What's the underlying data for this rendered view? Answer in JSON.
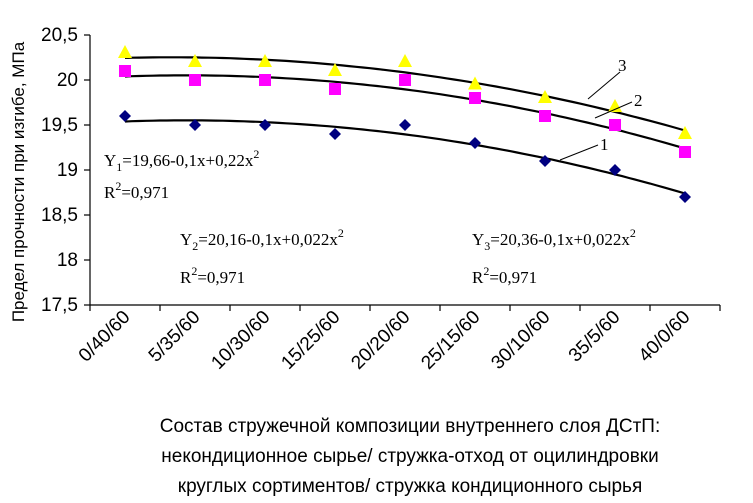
{
  "chart_data": {
    "type": "scatter",
    "categories": [
      "0/40/60",
      "5/35/60",
      "10/30/60",
      "15/25/60",
      "20/20/60",
      "25/15/60",
      "30/10/60",
      "35/5/60",
      "40/0/60"
    ],
    "ylabel": "Предел прочности при изгибе, МПа",
    "xlabel_lines": [
      "Состав стружечной композиции внутреннего слоя ДСтП:",
      "некондиционное сырье/ стружка-отход от оцилиндровки",
      "круглых сортиментов/ стружка кондиционного сырья"
    ],
    "y_ticks": [
      "17,5",
      "18",
      "18,5",
      "19",
      "19,5",
      "20",
      "20,5"
    ],
    "ylim": [
      17.5,
      20.5
    ],
    "series": [
      {
        "marker": "diamond",
        "color": "#000080",
        "values": [
          19.6,
          19.5,
          19.5,
          19.4,
          19.5,
          19.3,
          19.1,
          19.0,
          18.7
        ]
      },
      {
        "marker": "square",
        "color": "#ff00ff",
        "values": [
          20.1,
          20.0,
          20.0,
          19.9,
          20.0,
          19.8,
          19.6,
          19.5,
          19.2
        ]
      },
      {
        "marker": "triangle",
        "color": "#ffff00",
        "values": [
          20.3,
          20.2,
          20.2,
          20.1,
          20.2,
          19.95,
          19.8,
          19.7,
          19.4
        ]
      }
    ],
    "trend_labels": [
      "1",
      "2",
      "3"
    ],
    "equations": [
      {
        "y_main": "Y",
        "y_sub": "1",
        "rhs": "=19,66-0,1x+0,22x",
        "exp": "2",
        "r2_prefix": "R",
        "r2_exp": "2",
        "r2_value": "=0,971"
      },
      {
        "y_main": "Y",
        "y_sub": "2",
        "rhs": "=20,16-0,1x+0,022x",
        "exp": "2",
        "r2_prefix": "R",
        "r2_exp": "2",
        "r2_value": "=0,971"
      },
      {
        "y_main": "Y",
        "y_sub": "3",
        "rhs": "=20,36-0,1x+0,022x",
        "exp": "2",
        "r2_prefix": "R",
        "r2_exp": "2",
        "r2_value": "=0,971"
      }
    ],
    "grid": false
  }
}
